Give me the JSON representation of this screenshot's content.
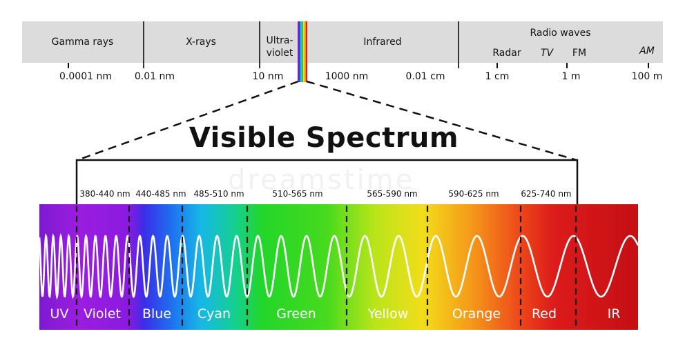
{
  "top_bands": {
    "gamma": "Gamma rays",
    "xray": "X-rays",
    "uv_line1": "Ultra-",
    "uv_line2": "violet",
    "infrared": "Infrared",
    "radio": "Radio waves",
    "radar": "Radar",
    "tv": "TV",
    "fm": "FM",
    "am": "AM"
  },
  "scale_labels": [
    "0.0001 nm",
    "0.01 nm",
    "10 nm",
    "1000 nm",
    "0.01 cm",
    "1 cm",
    "1 m",
    "100 m"
  ],
  "title": "Visible Spectrum",
  "ranges": [
    "380-440 nm",
    "440-485 nm",
    "485-510 nm",
    "510-565 nm",
    "565-590 nm",
    "590-625 nm",
    "625-740 nm"
  ],
  "colors": [
    "UV",
    "Violet",
    "Blue",
    "Cyan",
    "Green",
    "Yellow",
    "Orange",
    "Red",
    "IR"
  ],
  "watermark": "dreamstime"
}
